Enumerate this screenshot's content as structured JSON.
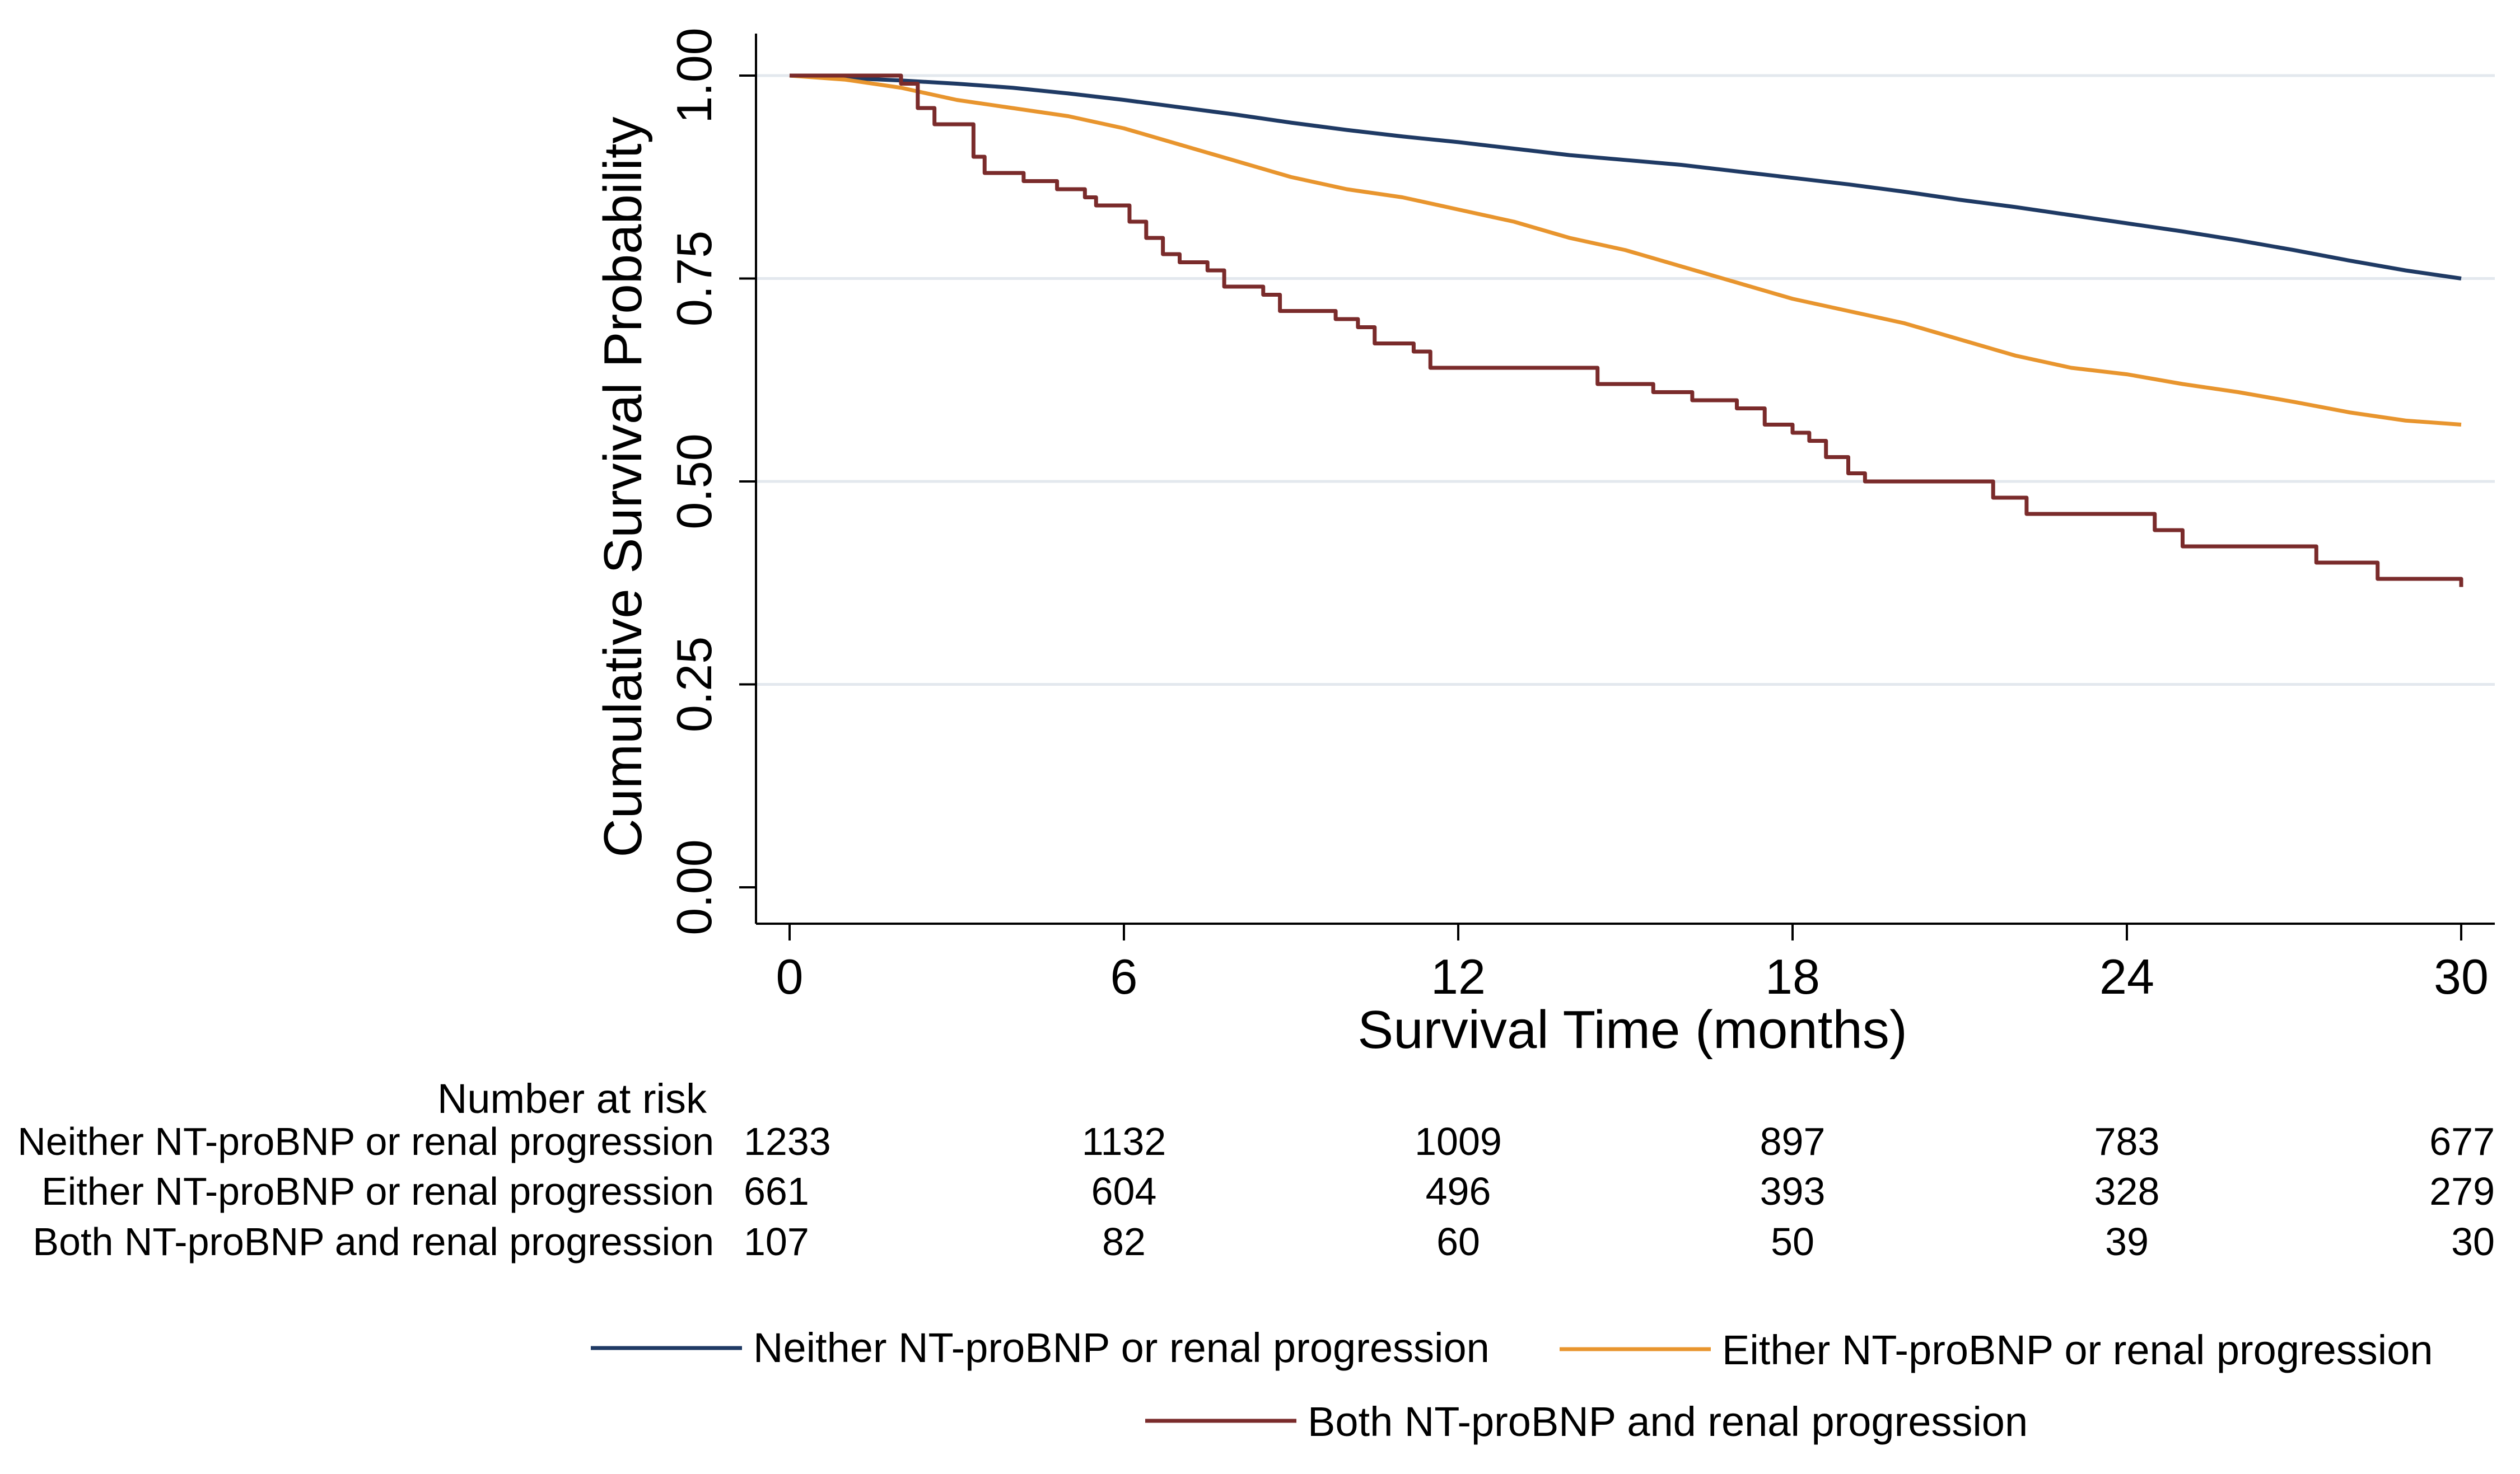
{
  "chart_data": {
    "type": "line",
    "title": "",
    "xlabel": "Survival Time (months)",
    "ylabel": "Cumulative Survival Probability",
    "xlim": [
      0,
      30
    ],
    "ylim": [
      0,
      1
    ],
    "x_ticks": [
      0,
      6,
      12,
      18,
      24,
      30
    ],
    "x_tick_labels": [
      "0",
      "6",
      "12",
      "18",
      "24",
      "30"
    ],
    "y_ticks": [
      0,
      0.25,
      0.5,
      0.75,
      1.0
    ],
    "y_tick_labels": [
      "0.00",
      "0.25",
      "0.50",
      "0.75",
      "1.00"
    ],
    "grid": true,
    "legend_position": "bottom",
    "series": [
      {
        "name": "Neither NT-proBNP or renal progression",
        "color": "#1f3a64",
        "points": [
          [
            0,
            1.0
          ],
          [
            1,
            0.997
          ],
          [
            2,
            0.994
          ],
          [
            3,
            0.99
          ],
          [
            4,
            0.985
          ],
          [
            5,
            0.978
          ],
          [
            6,
            0.97
          ],
          [
            7,
            0.961
          ],
          [
            8,
            0.952
          ],
          [
            9,
            0.942
          ],
          [
            10,
            0.933
          ],
          [
            11,
            0.925
          ],
          [
            12,
            0.918
          ],
          [
            13,
            0.91
          ],
          [
            14,
            0.902
          ],
          [
            15,
            0.896
          ],
          [
            16,
            0.89
          ],
          [
            17,
            0.882
          ],
          [
            18,
            0.874
          ],
          [
            19,
            0.866
          ],
          [
            20,
            0.857
          ],
          [
            21,
            0.847
          ],
          [
            22,
            0.838
          ],
          [
            23,
            0.828
          ],
          [
            24,
            0.818
          ],
          [
            25,
            0.808
          ],
          [
            26,
            0.797
          ],
          [
            27,
            0.785
          ],
          [
            28,
            0.772
          ],
          [
            29,
            0.76
          ],
          [
            30,
            0.75
          ]
        ]
      },
      {
        "name": "Either NT-proBNP or renal progression",
        "color": "#e8952e",
        "points": [
          [
            0,
            1.0
          ],
          [
            1,
            0.995
          ],
          [
            2,
            0.985
          ],
          [
            3,
            0.97
          ],
          [
            4,
            0.96
          ],
          [
            5,
            0.95
          ],
          [
            6,
            0.935
          ],
          [
            7,
            0.915
          ],
          [
            8,
            0.895
          ],
          [
            9,
            0.875
          ],
          [
            10,
            0.86
          ],
          [
            11,
            0.85
          ],
          [
            12,
            0.835
          ],
          [
            13,
            0.82
          ],
          [
            14,
            0.8
          ],
          [
            15,
            0.785
          ],
          [
            16,
            0.765
          ],
          [
            17,
            0.745
          ],
          [
            18,
            0.725
          ],
          [
            19,
            0.71
          ],
          [
            20,
            0.695
          ],
          [
            21,
            0.675
          ],
          [
            22,
            0.655
          ],
          [
            23,
            0.64
          ],
          [
            24,
            0.632
          ],
          [
            25,
            0.62
          ],
          [
            26,
            0.61
          ],
          [
            27,
            0.598
          ],
          [
            28,
            0.585
          ],
          [
            29,
            0.575
          ],
          [
            30,
            0.57
          ]
        ]
      },
      {
        "name": "Both NT-proBNP and renal progression",
        "color": "#7a2b2b",
        "step": true,
        "points": [
          [
            0,
            1.0
          ],
          [
            1.3,
            1.0
          ],
          [
            2.0,
            0.99
          ],
          [
            2.3,
            0.96
          ],
          [
            2.6,
            0.94
          ],
          [
            3.3,
            0.9
          ],
          [
            3.5,
            0.88
          ],
          [
            4.2,
            0.87
          ],
          [
            4.8,
            0.86
          ],
          [
            5.3,
            0.85
          ],
          [
            5.5,
            0.84
          ],
          [
            6.1,
            0.82
          ],
          [
            6.4,
            0.8
          ],
          [
            6.7,
            0.78
          ],
          [
            7.0,
            0.77
          ],
          [
            7.5,
            0.76
          ],
          [
            7.8,
            0.74
          ],
          [
            8.5,
            0.73
          ],
          [
            8.8,
            0.71
          ],
          [
            9.8,
            0.7
          ],
          [
            10.2,
            0.69
          ],
          [
            10.5,
            0.67
          ],
          [
            11.2,
            0.66
          ],
          [
            11.5,
            0.64
          ],
          [
            14.5,
            0.62
          ],
          [
            15.5,
            0.61
          ],
          [
            16.2,
            0.6
          ],
          [
            17.0,
            0.59
          ],
          [
            17.5,
            0.57
          ],
          [
            18.0,
            0.56
          ],
          [
            18.3,
            0.55
          ],
          [
            18.6,
            0.53
          ],
          [
            19.0,
            0.51
          ],
          [
            19.3,
            0.5
          ],
          [
            21.6,
            0.48
          ],
          [
            22.2,
            0.46
          ],
          [
            24.5,
            0.44
          ],
          [
            25.0,
            0.42
          ],
          [
            27.4,
            0.4
          ],
          [
            28.5,
            0.38
          ],
          [
            30.0,
            0.37
          ]
        ]
      }
    ],
    "risk_table": {
      "title": "Number at risk",
      "times": [
        0,
        6,
        12,
        18,
        24,
        30
      ],
      "rows": [
        {
          "label": "Neither NT-proBNP or renal progression",
          "values": [
            "1233",
            "1132",
            "1009",
            "897",
            "783",
            "677"
          ]
        },
        {
          "label": "Either NT-proBNP or renal progression",
          "values": [
            "661",
            "604",
            "496",
            "393",
            "328",
            "279"
          ]
        },
        {
          "label": "Both NT-proBNP and renal progression",
          "values": [
            "107",
            "82",
            "60",
            "50",
            "39",
            "30"
          ]
        }
      ]
    }
  }
}
